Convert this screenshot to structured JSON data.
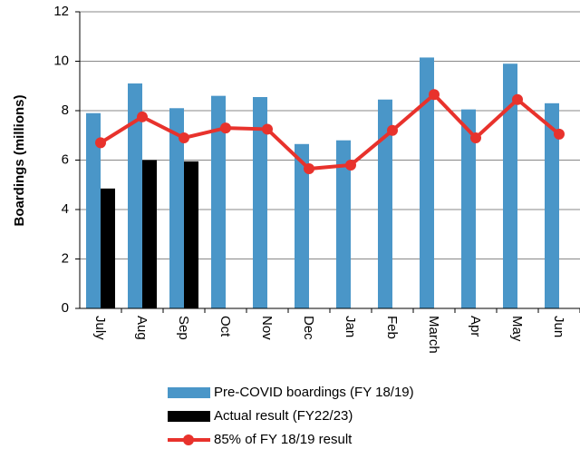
{
  "chart_data": {
    "type": "bar",
    "y_label": "Boardings (millions)",
    "categories": [
      "July",
      "Aug",
      "Sep",
      "Oct",
      "Nov",
      "Dec",
      "Jan",
      "Feb",
      "March",
      "Apr",
      "May",
      "Jun"
    ],
    "series": [
      {
        "name": "Pre-COVID boardings (FY 18/19)",
        "type": "bar",
        "color": "#4a96c8",
        "values": [
          7.9,
          9.1,
          8.1,
          8.6,
          8.55,
          6.65,
          6.8,
          8.45,
          10.15,
          8.05,
          9.9,
          8.3
        ]
      },
      {
        "name": "Actual result (FY22/23)",
        "type": "bar",
        "color": "#000000",
        "values": [
          4.85,
          6.0,
          5.95,
          null,
          null,
          null,
          null,
          null,
          null,
          null,
          null,
          null
        ]
      },
      {
        "name": "85% of FY 18/19 result",
        "type": "line",
        "color": "#e8322c",
        "values": [
          6.7,
          7.75,
          6.9,
          7.3,
          7.25,
          5.65,
          5.8,
          7.2,
          8.65,
          6.9,
          8.45,
          7.05
        ]
      }
    ],
    "ylim": [
      0,
      12
    ],
    "yticks": [
      0,
      2,
      4,
      6,
      8,
      10,
      12
    ],
    "grid": true
  }
}
